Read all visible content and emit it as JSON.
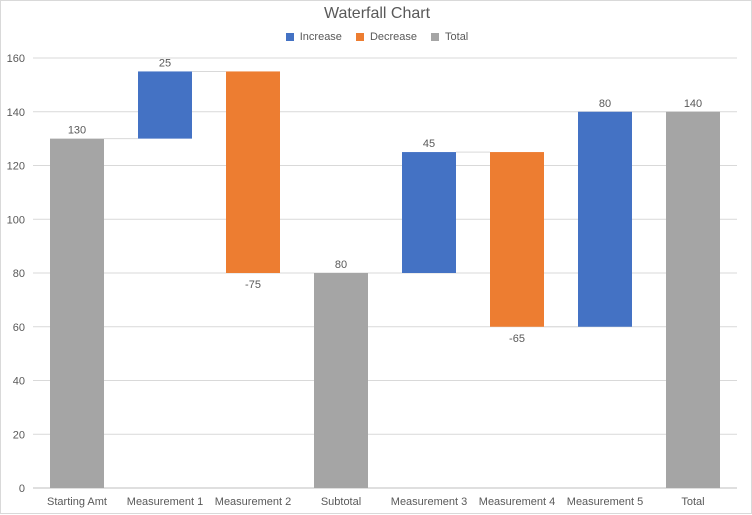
{
  "chart_data": {
    "type": "bar",
    "subtype": "waterfall",
    "title": "Waterfall Chart",
    "categories": [
      "Starting Amt",
      "Measurement 1",
      "Measurement 2",
      "Subtotal",
      "Measurement 3",
      "Measurement 4",
      "Measurement 5",
      "Total"
    ],
    "values": [
      130,
      25,
      -75,
      80,
      45,
      -65,
      80,
      140
    ],
    "kinds": [
      "total",
      "increase",
      "decrease",
      "total",
      "increase",
      "decrease",
      "increase",
      "total"
    ],
    "data_labels": [
      "130",
      "25",
      "-75",
      "80",
      "45",
      "-65",
      "80",
      "140"
    ],
    "legend": [
      {
        "label": "Increase",
        "color": "#4472c4"
      },
      {
        "label": "Decrease",
        "color": "#ed7d31"
      },
      {
        "label": "Total",
        "color": "#a5a5a5"
      }
    ],
    "legend_position": "top",
    "ylim": [
      0,
      160
    ],
    "yticks": [
      0,
      20,
      40,
      60,
      80,
      100,
      120,
      140,
      160
    ],
    "grid": true,
    "xlabel": "",
    "ylabel": ""
  }
}
